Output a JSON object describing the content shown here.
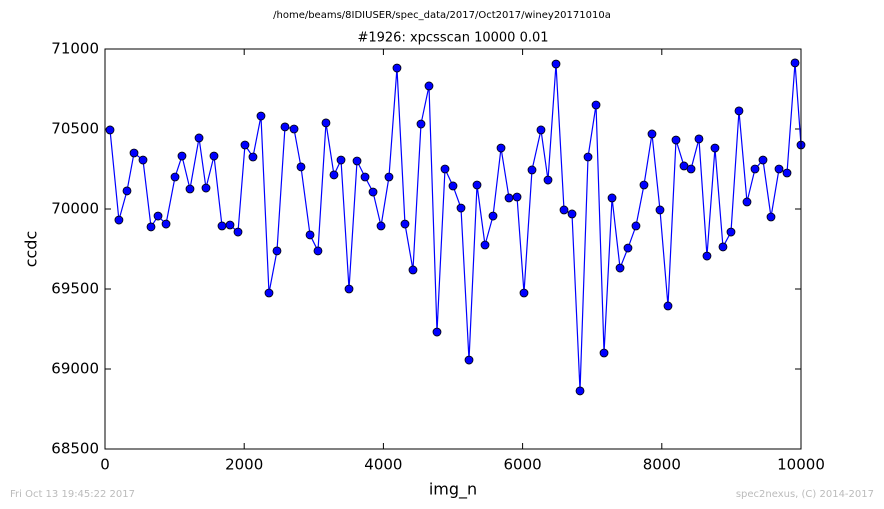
{
  "chart_data": {
    "type": "line",
    "suptitle": "/home/beams/8IDIUSER/spec_data/2017/Oct2017/winey20171010a",
    "title": "#1926: xpcsscan 10000 0.01",
    "xlabel": "img_n",
    "ylabel": "ccdc",
    "annotations": [
      "Fri Oct 13 19:45:22 2017",
      "spec2nexus, (C) 2014-2017"
    ],
    "x": [
      72,
      200,
      316,
      417,
      546,
      661,
      762,
      877,
      1006,
      1106,
      1221,
      1351,
      1451,
      1566,
      1681,
      1796,
      1911,
      2011,
      2126,
      2241,
      2356,
      2471,
      2586,
      2716,
      2816,
      2946,
      3060,
      3175,
      3290,
      3391,
      3506,
      3621,
      3736,
      3851,
      3966,
      4080,
      4195,
      4310,
      4425,
      4540,
      4655,
      4770,
      4885,
      5000,
      5115,
      5230,
      5345,
      5460,
      5575,
      5690,
      5805,
      5920,
      6020,
      6135,
      6264,
      6365,
      6480,
      6595,
      6710,
      6825,
      6940,
      7055,
      7170,
      7285,
      7400,
      7514,
      7629,
      7744,
      7859,
      7974,
      8089,
      8204,
      8319,
      8420,
      8534,
      8649,
      8764,
      8879,
      8994,
      9109,
      9224,
      9339,
      9454,
      9569,
      9684,
      9799,
      9914,
      10000
    ],
    "series": [
      {
        "name": "ccdc",
        "color": "#0000ff",
        "values": [
          70494,
          69931,
          70113,
          70350,
          70306,
          69888,
          69956,
          69906,
          70200,
          70331,
          70125,
          70444,
          70131,
          70331,
          69894,
          69900,
          69856,
          70400,
          70325,
          70581,
          69475,
          69738,
          70513,
          70500,
          70263,
          69838,
          69738,
          70538,
          70213,
          70306,
          69500,
          70300,
          70200,
          70106,
          69894,
          70200,
          70881,
          69906,
          69619,
          70531,
          70769,
          69231,
          70250,
          70144,
          70006,
          69056,
          70150,
          69775,
          69956,
          70381,
          70069,
          70075,
          69475,
          70244,
          70494,
          70181,
          70906,
          69994,
          69969,
          68863,
          70325,
          70650,
          69100,
          70069,
          69631,
          69756,
          69894,
          70150,
          70469,
          69994,
          69394,
          70431,
          70269,
          70250,
          70438,
          69706,
          70381,
          69763,
          69856,
          70613,
          70044,
          70250,
          70306,
          69950,
          70250,
          70225,
          70913,
          70400
        ]
      }
    ],
    "xlim": [
      0,
      10000
    ],
    "xticks": [
      0,
      2000,
      4000,
      6000,
      8000,
      10000
    ],
    "ylim": [
      68500,
      71000
    ],
    "yticks": [
      68500,
      69000,
      69500,
      70000,
      70500,
      71000
    ],
    "grid": false
  }
}
